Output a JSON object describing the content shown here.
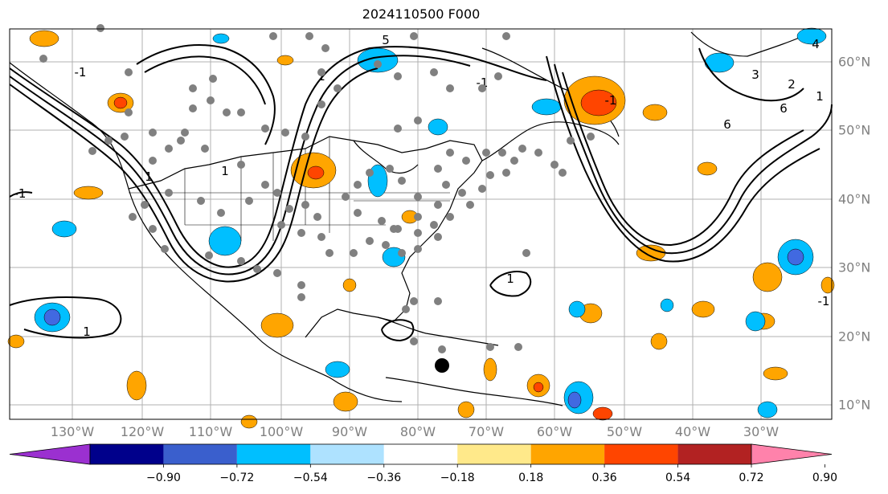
{
  "title": "2024110500 F000",
  "lon_labels": [
    "130°W",
    "120°W",
    "110°W",
    "100°W",
    "90°W",
    "80°W",
    "70°W",
    "60°W",
    "50°W",
    "40°W",
    "30°W"
  ],
  "lat_labels": [
    "60°N",
    "50°N",
    "40°N",
    "30°N",
    "20°N",
    "10°N"
  ],
  "contour_labels": [
    "1",
    "1",
    "1",
    "1",
    "1",
    "1",
    "2",
    "3",
    "4",
    "5",
    "6",
    "6",
    "-1",
    "-1",
    "-1",
    "-1",
    "-1"
  ],
  "colorbar": {
    "ticks": [
      "−0.90",
      "−0.72",
      "−0.54",
      "−0.36",
      "−0.18",
      "0.18",
      "0.36",
      "0.54",
      "0.72",
      "0.90"
    ],
    "colors": [
      "#9b30d0",
      "#00008b",
      "#3a5fcd",
      "#00bfff",
      "#aee2ff",
      "#ffffff",
      "#ffe98a",
      "#ffa500",
      "#ff4500",
      "#b22222",
      "#ff82ab"
    ],
    "extend": "both"
  },
  "legend_colors": {
    "neg_strong": "#4169e1",
    "neg_mid": "#00bfff",
    "neg_light": "#aee2ff",
    "pos_light": "#ffe98a",
    "pos_mid": "#ffa500",
    "pos_strong": "#ff4500",
    "contour": "#000000",
    "dots": "#808080",
    "marker": "#000000",
    "grid": "#b0b0b0"
  }
}
